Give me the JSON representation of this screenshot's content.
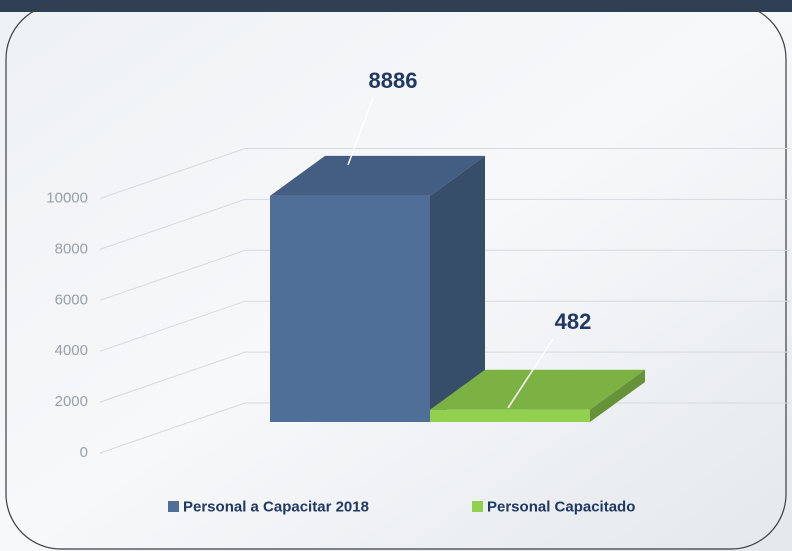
{
  "chart_data": {
    "type": "bar3d",
    "series": [
      {
        "name": "Personal a Capacitar 2018",
        "color": "#4f6f99",
        "values": [
          8886
        ]
      },
      {
        "name": "Personal Capacitado",
        "color": "#92d050",
        "values": [
          482
        ]
      }
    ],
    "ylim": [
      0,
      10000
    ],
    "yticks": [
      0,
      2000,
      4000,
      6000,
      8000,
      10000
    ],
    "grid": true,
    "legend": "bottom"
  }
}
